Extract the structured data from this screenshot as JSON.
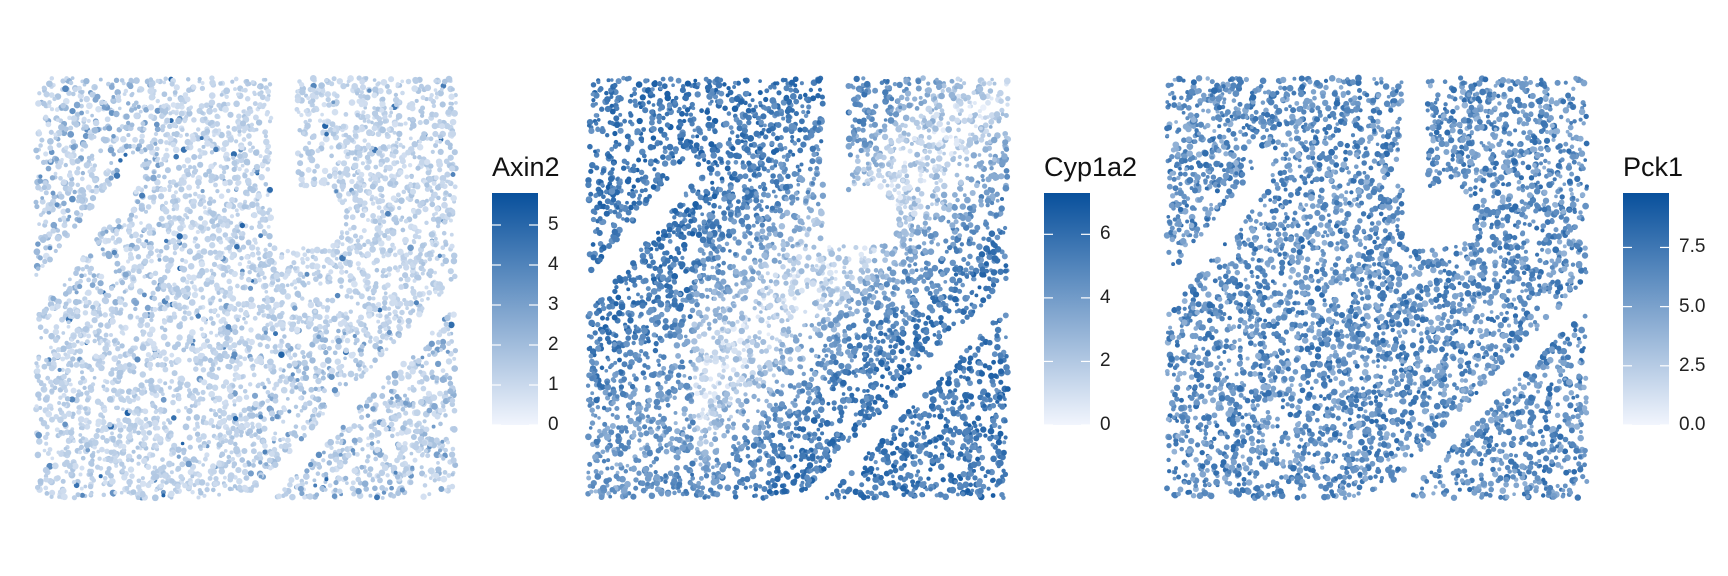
{
  "chart_data": [
    {
      "type": "scatter",
      "title": "",
      "legend_title": "Axin2",
      "colorbar_ticks": [
        "0",
        "1",
        "2",
        "3",
        "4",
        "5"
      ],
      "color_range": [
        0,
        5.8
      ],
      "color_low": "#f1f5fd",
      "color_high": "#08509c",
      "typical_level": 0.12,
      "legend_position": "right"
    },
    {
      "type": "scatter",
      "title": "",
      "legend_title": "Cyp1a2",
      "colorbar_ticks": [
        "0",
        "2",
        "4",
        "6"
      ],
      "color_range": [
        0,
        7.3
      ],
      "color_low": "#f1f5fd",
      "color_high": "#08509c",
      "typical_level": 0.55,
      "legend_position": "right"
    },
    {
      "type": "scatter",
      "title": "",
      "legend_title": "Pck1",
      "colorbar_ticks": [
        "0.0",
        "2.5",
        "5.0",
        "7.5"
      ],
      "color_range": [
        0,
        9.8
      ],
      "color_low": "#f1f5fd",
      "color_high": "#08509c",
      "typical_level": 0.62,
      "legend_position": "right"
    }
  ]
}
